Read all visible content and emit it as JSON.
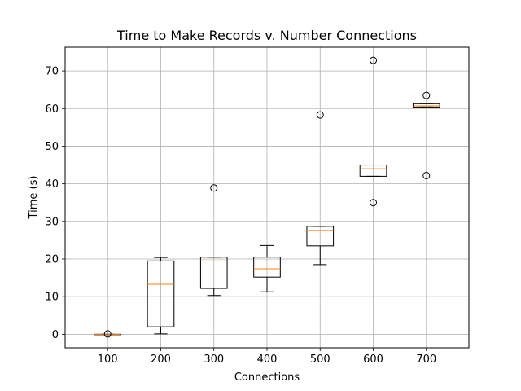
{
  "chart_data": {
    "type": "boxplot",
    "title": "Time to Make Records v. Number Connections",
    "xlabel": "Connections",
    "ylabel": "Time (s)",
    "ylim": [
      -3.6,
      76.3
    ],
    "yticks": [
      0,
      10,
      20,
      30,
      40,
      50,
      60,
      70
    ],
    "grid": true,
    "colors": {
      "box": "#000000",
      "median": "#ff7f0e",
      "grid": "#b0b0b0",
      "flier": "#000000"
    },
    "categories": [
      "100",
      "200",
      "300",
      "400",
      "500",
      "600",
      "700"
    ],
    "boxes": [
      {
        "label": "100",
        "whisker_low": 0.0,
        "q1": 0.0,
        "median": 0.0,
        "q3": 0.0,
        "whisker_high": 0.0,
        "fliers": [
          0.1
        ]
      },
      {
        "label": "200",
        "whisker_low": 0.1,
        "q1": 2.0,
        "median": 13.3,
        "q3": 19.5,
        "whisker_high": 20.4,
        "fliers": []
      },
      {
        "label": "300",
        "whisker_low": 10.3,
        "q1": 12.2,
        "median": 19.5,
        "q3": 20.5,
        "whisker_high": 20.5,
        "fliers": [
          38.9
        ]
      },
      {
        "label": "400",
        "whisker_low": 11.3,
        "q1": 15.2,
        "median": 17.4,
        "q3": 20.5,
        "whisker_high": 23.6,
        "fliers": []
      },
      {
        "label": "500",
        "whisker_low": 18.5,
        "q1": 23.5,
        "median": 27.6,
        "q3": 28.7,
        "whisker_high": 28.7,
        "fliers": [
          58.3
        ]
      },
      {
        "label": "600",
        "whisker_low": 42.0,
        "q1": 42.0,
        "median": 44.0,
        "q3": 45.0,
        "whisker_high": 45.0,
        "fliers": [
          72.8,
          35.0
        ]
      },
      {
        "label": "700",
        "whisker_low": 60.4,
        "q1": 60.4,
        "median": 60.7,
        "q3": 61.3,
        "whisker_high": 61.3,
        "fliers": [
          63.5,
          42.2
        ]
      }
    ]
  }
}
